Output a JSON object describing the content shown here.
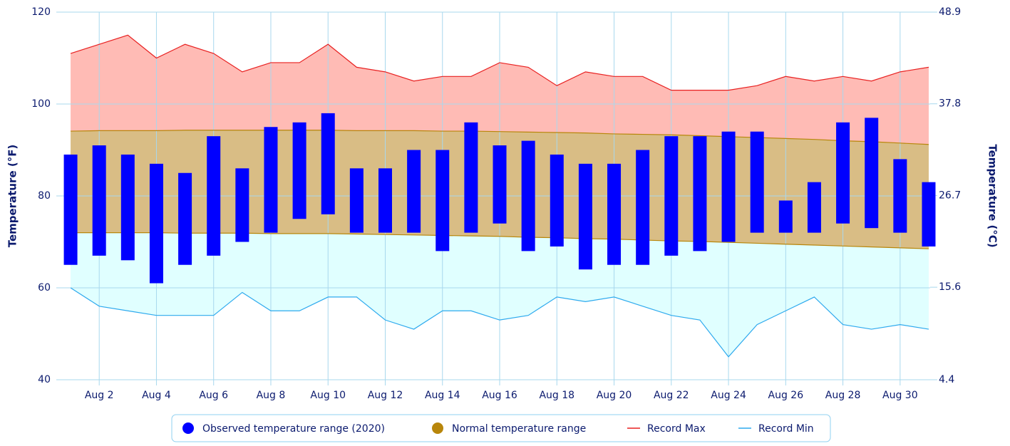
{
  "chart_data": {
    "type": "temperature-range",
    "categories": [
      null,
      "Aug 2",
      null,
      "Aug 4",
      null,
      "Aug 6",
      null,
      "Aug 8",
      null,
      "Aug 10",
      null,
      "Aug 12",
      null,
      "Aug 14",
      null,
      "Aug 16",
      null,
      "Aug 18",
      null,
      "Aug 20",
      null,
      "Aug 22",
      null,
      "Aug 24",
      null,
      "Aug 26",
      null,
      "Aug 28",
      null,
      "Aug 30",
      null
    ],
    "y_label": "Temperature (°F)",
    "y2_label": "Temperature (°C)",
    "ylim": [
      40,
      120
    ],
    "yticks": [
      40,
      60,
      80,
      100,
      120
    ],
    "y2lim": [
      4.4,
      48.9
    ],
    "y2ticks": [
      4.4,
      15.6,
      26.7,
      37.8,
      48.9
    ],
    "grid": true,
    "series": [
      {
        "name": "Observed temperature range (2020)",
        "color": "#0000ff",
        "high": [
          89,
          91,
          89,
          87,
          85,
          93,
          86,
          95,
          96,
          98,
          86,
          86,
          90,
          90,
          96,
          91,
          92,
          89,
          87,
          87,
          90,
          93,
          93,
          94,
          94,
          79,
          83,
          96,
          97,
          88,
          83
        ],
        "low": [
          65,
          67,
          66,
          61,
          65,
          67,
          70,
          72,
          75,
          76,
          72,
          72,
          72,
          68,
          72,
          74,
          68,
          69,
          64,
          65,
          65,
          67,
          68,
          70,
          72,
          72,
          72,
          74,
          73,
          72,
          69
        ]
      },
      {
        "name": "Normal temperature range",
        "color": "#b8860b",
        "high": [
          94.1,
          94.2,
          94.2,
          94.2,
          94.3,
          94.3,
          94.3,
          94.3,
          94.3,
          94.3,
          94.2,
          94.2,
          94.2,
          94.1,
          94.1,
          94.0,
          93.9,
          93.8,
          93.7,
          93.5,
          93.4,
          93.3,
          93.1,
          92.9,
          92.7,
          92.5,
          92.3,
          92.0,
          91.8,
          91.5,
          91.2
        ],
        "low": [
          72.0,
          72.0,
          72.0,
          72.0,
          71.9,
          71.9,
          71.9,
          71.8,
          71.8,
          71.8,
          71.7,
          71.6,
          71.5,
          71.4,
          71.3,
          71.2,
          71.0,
          70.9,
          70.7,
          70.6,
          70.4,
          70.2,
          70.1,
          69.9,
          69.7,
          69.5,
          69.3,
          69.1,
          68.9,
          68.7,
          68.5
        ]
      },
      {
        "name": "Record Max",
        "color": "#e82020",
        "values": [
          111,
          113,
          115,
          110,
          113,
          111,
          107,
          109,
          109,
          113,
          108,
          107,
          105,
          106,
          106,
          109,
          108,
          104,
          107,
          106,
          106,
          103,
          103,
          103,
          104,
          106,
          105,
          106,
          105,
          107,
          108
        ]
      },
      {
        "name": "Record Min",
        "color": "#2eaaee",
        "values": [
          60,
          56,
          55,
          54,
          54,
          54,
          59,
          55,
          55,
          58,
          58,
          53,
          51,
          55,
          55,
          53,
          54,
          58,
          57,
          58,
          56,
          54,
          53,
          45,
          52,
          55,
          58,
          52,
          51,
          52,
          51
        ]
      }
    ]
  }
}
